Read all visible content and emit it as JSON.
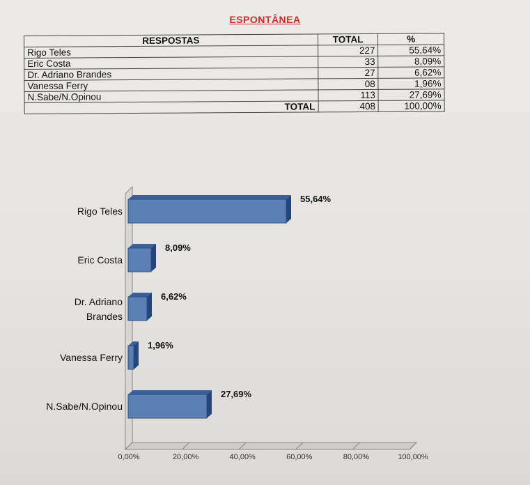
{
  "title": "ESPONTÂNEA",
  "table": {
    "headers": [
      "RESPOSTAS",
      "TOTAL",
      "%"
    ],
    "rows": [
      {
        "name": "Rigo Teles",
        "total": "227",
        "pct": "55,64%"
      },
      {
        "name": "Eric Costa",
        "total": "33",
        "pct": "8,09%"
      },
      {
        "name": "Dr. Adriano Brandes",
        "total": "27",
        "pct": "6,62%"
      },
      {
        "name": "Vanessa Ferry",
        "total": "08",
        "pct": "1,96%"
      },
      {
        "name": "N.Sabe/N.Opinou",
        "total": "113",
        "pct": "27,69%"
      }
    ],
    "total_row": {
      "label": "TOTAL",
      "total": "408",
      "pct": "100,00%"
    }
  },
  "chart_data": {
    "type": "bar",
    "orientation": "horizontal",
    "categories": [
      [
        "Rigo Teles"
      ],
      [
        "Eric Costa"
      ],
      [
        "Dr. Adriano",
        "Brandes"
      ],
      [
        "Vanessa Ferry"
      ],
      [
        "N.Sabe/N.Opinou"
      ]
    ],
    "values": [
      55.64,
      8.09,
      6.62,
      1.96,
      27.69
    ],
    "value_labels": [
      "55,64%",
      "8,09%",
      "6,62%",
      "1,96%",
      "27,69%"
    ],
    "xticks": [
      "0,00%",
      "20,00%",
      "40,00%",
      "60,00%",
      "80,00%",
      "100,00%"
    ],
    "xlim": [
      0,
      100
    ],
    "grid": false,
    "bar_color": "#5b7fb5",
    "bar_edge_color": "#2d4f86"
  }
}
